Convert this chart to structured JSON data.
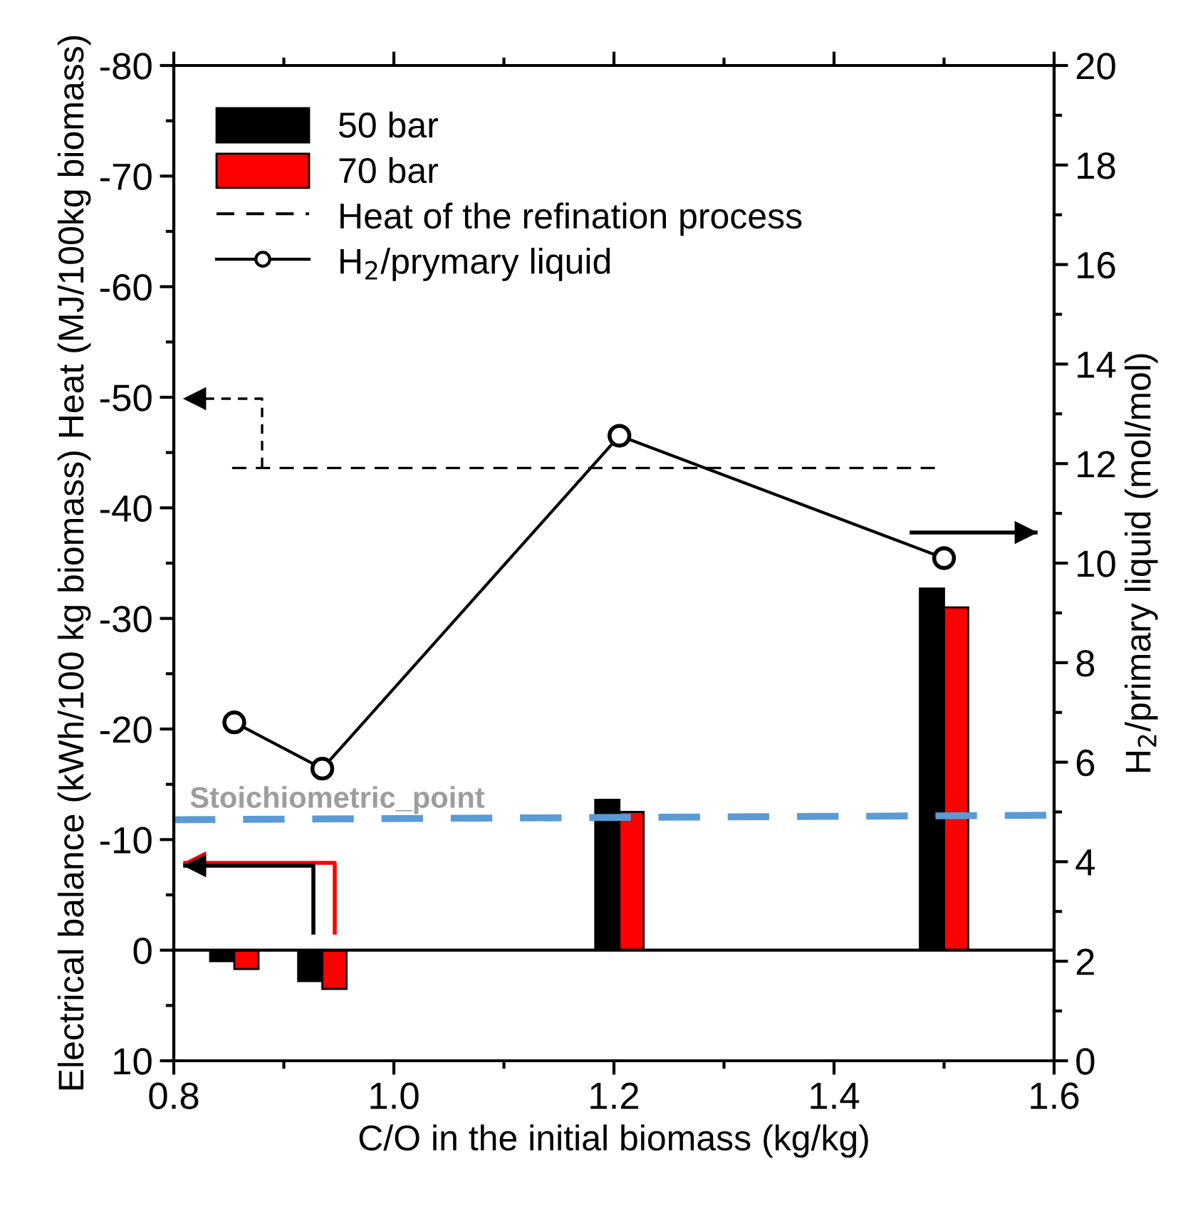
{
  "chart_data": {
    "type": "bar",
    "xlabel": "C/O in the initial biomass (kg/kg)",
    "ylabel": "Electrical balance (kWh/100 kg biomass) Heat (MJ/100kg biomass)",
    "y2label": "H$_{2}$/primary liquid (mol/mol)",
    "x": [
      0.855,
      0.935,
      1.205,
      1.5
    ],
    "series": [
      {
        "name": "50 bar",
        "color": "#000000",
        "values": [
          1.0,
          2.8,
          -13.6,
          -32.7
        ]
      },
      {
        "name": "70 bar",
        "color": "#ff0000",
        "values": [
          1.7,
          3.5,
          -12.5,
          -31.0
        ]
      },
      {
        "name": "Heat of the refination process",
        "type": "line",
        "line_style": "dashed",
        "marker": "none",
        "color": "#000000",
        "x": [
          0.853,
          1.494
        ],
        "values": [
          -43.6,
          -43.6
        ]
      },
      {
        "name": "H$_{2}$/prymary liquid",
        "type": "line",
        "line_style": "solid",
        "marker": "circle",
        "axis": "y2",
        "color": "#000000",
        "values": [
          6.8,
          5.87,
          12.56,
          10.1
        ]
      },
      {
        "type": "line",
        "line_style": "dashed",
        "marker": "none",
        "color": "#5b9bd5",
        "x": [
          0.8,
          1.6
        ],
        "values": [
          -11.8,
          -12.2
        ]
      }
    ],
    "annotations": [
      "Stoichiometric_point"
    ],
    "xlim": [
      0.8,
      1.6
    ],
    "xticks": [
      0.8,
      {
        "value": 1.0,
        "label": "1.0"
      },
      1.2,
      1.4,
      1.6
    ],
    "ylim": [
      10,
      -80
    ],
    "yticks": [
      10,
      0,
      -10,
      -20,
      -30,
      -40,
      -50,
      -60,
      -70,
      -80
    ],
    "y2lim": [
      0,
      20
    ],
    "y2ticks": [
      0,
      2,
      4,
      6,
      8,
      10,
      12,
      14,
      16,
      18,
      20
    ],
    "legend": "top left",
    "grid": false
  }
}
